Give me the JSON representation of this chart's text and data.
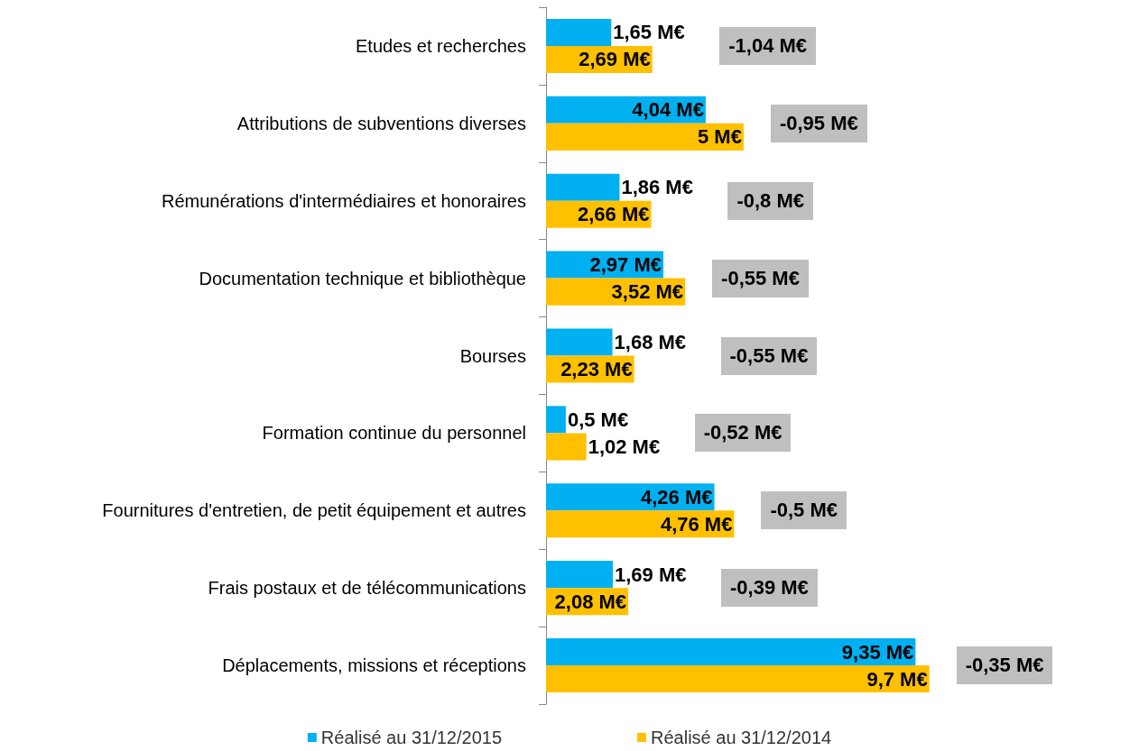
{
  "chart_data": {
    "type": "bar",
    "orientation": "horizontal",
    "legend": "bottom",
    "categories": [
      "Etudes et recherches",
      "Attributions de subventions diverses",
      "Rémunérations d'intermédiaires et honoraires",
      "Documentation technique et bibliothèque",
      "Bourses",
      "Formation continue du personnel",
      "Fournitures d'entretien, de petit équipement et autres",
      "Frais postaux et de télécommunications",
      "Déplacements, missions et réceptions"
    ],
    "series": [
      {
        "name": "Réalisé au 31/12/2015",
        "color": "#00b0f0",
        "values": [
          1.65,
          4.04,
          1.86,
          2.97,
          1.68,
          0.5,
          4.26,
          1.69,
          9.35
        ],
        "value_labels": [
          "1,65 M€",
          "4,04 M€",
          "1,86 M€",
          "2,97 M€",
          "1,68 M€",
          "0,5 M€",
          "4,26 M€",
          "1,69 M€",
          "9,35 M€"
        ]
      },
      {
        "name": "Réalisé au 31/12/2014",
        "color": "#ffc000",
        "values": [
          2.69,
          5,
          2.66,
          3.52,
          2.23,
          1.02,
          4.76,
          2.08,
          9.7
        ],
        "value_labels": [
          "2,69 M€",
          "5 M€",
          "2,66 M€",
          "3,52 M€",
          "2,23 M€",
          "1,02 M€",
          "4,76 M€",
          "2,08 M€",
          "9,7 M€"
        ]
      }
    ],
    "annotations": [
      "-1,04 M€",
      "-0,95 M€",
      "-0,8 M€",
      "-0,55 M€",
      "-0,55 M€",
      "-0,52 M€",
      "-0,5 M€",
      "-0,39 M€",
      "-0,35 M€"
    ]
  }
}
